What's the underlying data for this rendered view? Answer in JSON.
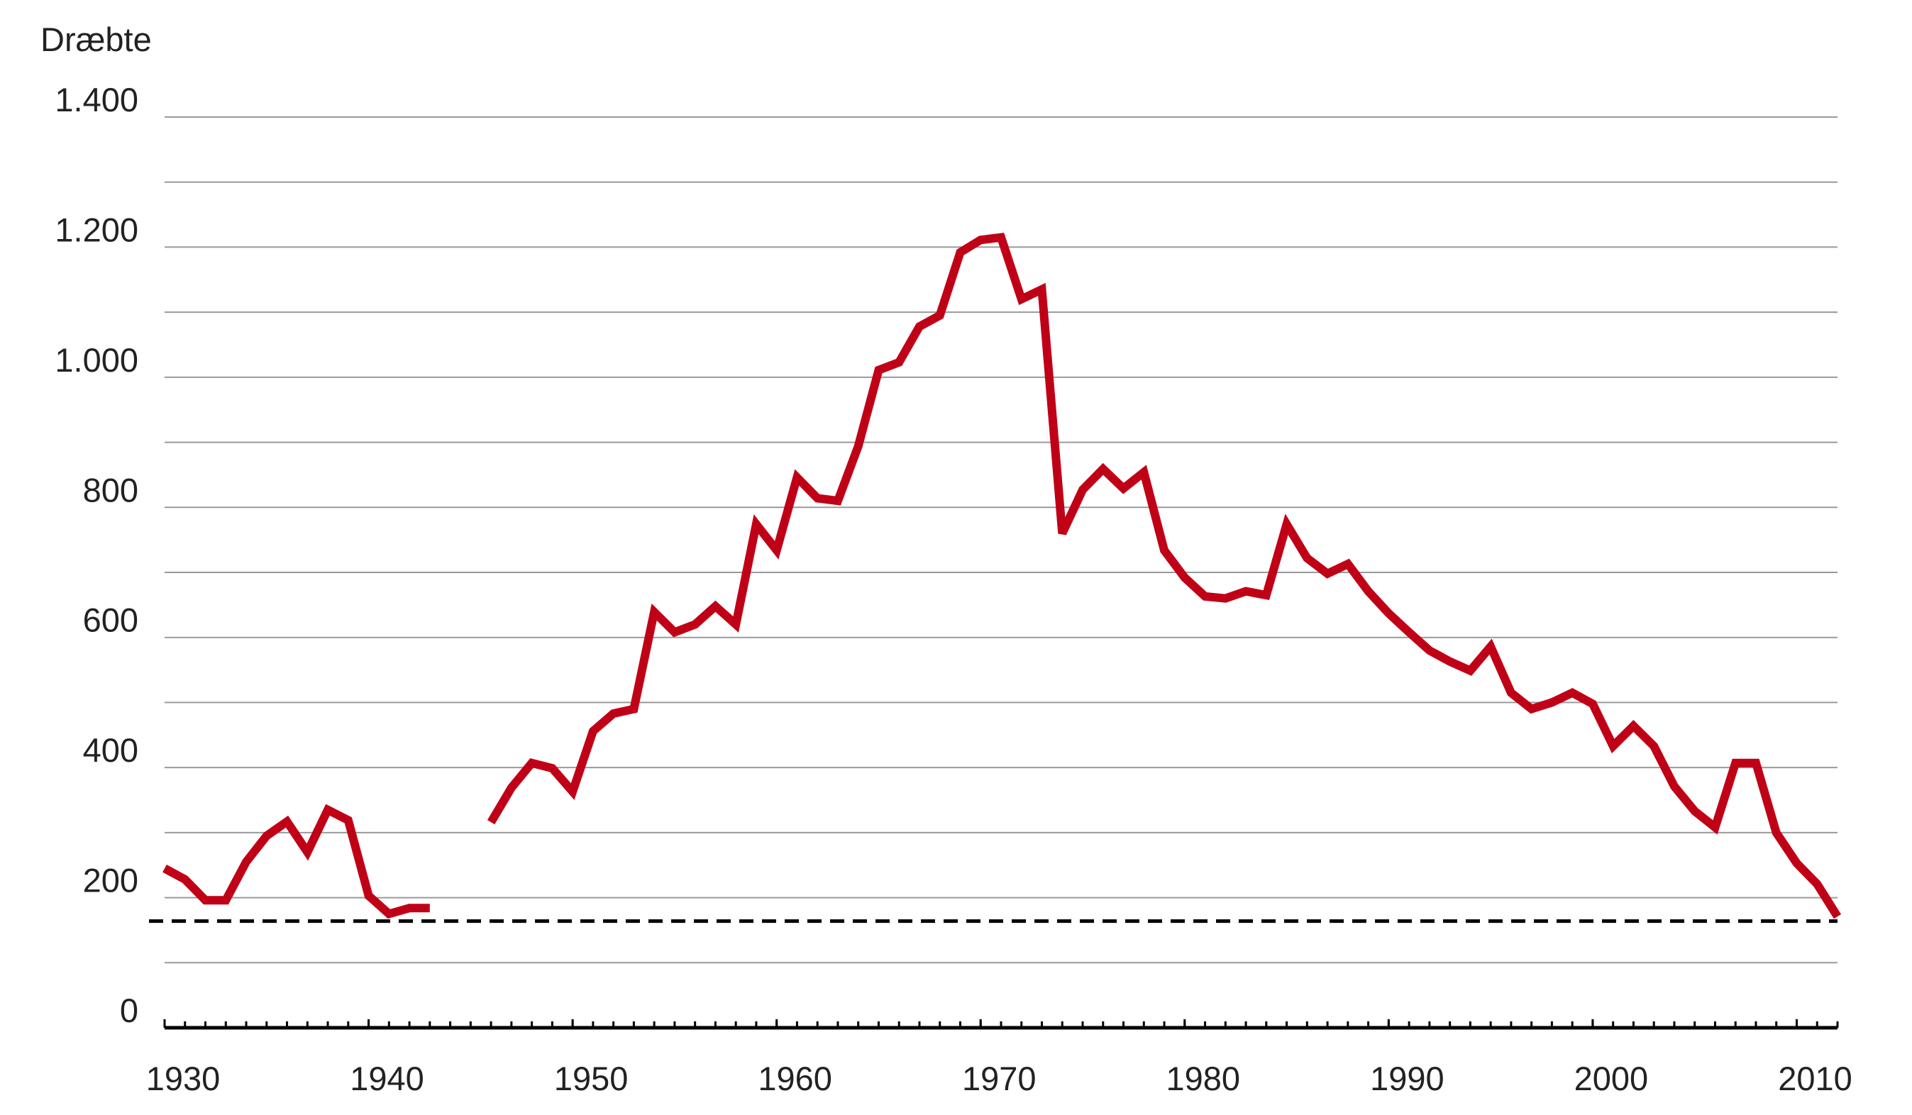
{
  "chart_data": {
    "type": "line",
    "y_label": "Dræbte",
    "x": [
      1930,
      1931,
      1932,
      1933,
      1934,
      1935,
      1936,
      1937,
      1938,
      1939,
      1940,
      1941,
      1942,
      1943,
      1944,
      1945,
      1946,
      1947,
      1948,
      1949,
      1950,
      1951,
      1952,
      1953,
      1954,
      1955,
      1956,
      1957,
      1958,
      1959,
      1960,
      1961,
      1962,
      1963,
      1964,
      1965,
      1966,
      1967,
      1968,
      1969,
      1970,
      1971,
      1972,
      1973,
      1974,
      1975,
      1976,
      1977,
      1978,
      1979,
      1980,
      1981,
      1982,
      1983,
      1984,
      1985,
      1986,
      1987,
      1988,
      1989,
      1990,
      1991,
      1992,
      1993,
      1994,
      1995,
      1996,
      1997,
      1998,
      1999,
      2000,
      2001,
      2002,
      2003,
      2004,
      2005,
      2006,
      2007,
      2008,
      2009,
      2010,
      2011,
      2012
    ],
    "series": [
      {
        "color": "#c00016",
        "values": [
          245,
          228,
          196,
          196,
          255,
          295,
          317,
          270,
          335,
          319,
          203,
          175,
          184,
          184,
          null,
          null,
          316,
          369,
          407,
          399,
          363,
          456,
          483,
          490,
          639,
          608,
          620,
          648,
          620,
          774,
          734,
          846,
          814,
          810,
          894,
          1011,
          1023,
          1078,
          1095,
          1192,
          1211,
          1215,
          1120,
          1135,
          760,
          827,
          859,
          829,
          854,
          734,
          692,
          663,
          660,
          671,
          665,
          774,
          722,
          698,
          713,
          671,
          637,
          608,
          580,
          563,
          549,
          586,
          515,
          490,
          500,
          515,
          498,
          433,
          464,
          433,
          371,
          333,
          308,
          407,
          407,
          300,
          253,
          221,
          171
        ]
      }
    ],
    "xlim": [
      1930,
      2012
    ],
    "xticks": [
      1930,
      1940,
      1950,
      1960,
      1970,
      1980,
      1990,
      2000,
      2010
    ],
    "minor_xtick_step": 1,
    "ylim": [
      0,
      1400
    ],
    "yticks": [
      {
        "value": 0,
        "label": "0"
      },
      {
        "value": 200,
        "label": "200"
      },
      {
        "value": 400,
        "label": "400"
      },
      {
        "value": 600,
        "label": "600"
      },
      {
        "value": 800,
        "label": "800"
      },
      {
        "value": 1000,
        "label": "1.000"
      },
      {
        "value": 1200,
        "label": "1.200"
      },
      {
        "value": 1400,
        "label": "1.400"
      }
    ],
    "minor_yticks": [
      100,
      300,
      500,
      700,
      900,
      1100,
      1300
    ],
    "grid": true,
    "reference_line": {
      "value": 164,
      "color": "#000000",
      "style": "dashed"
    }
  }
}
